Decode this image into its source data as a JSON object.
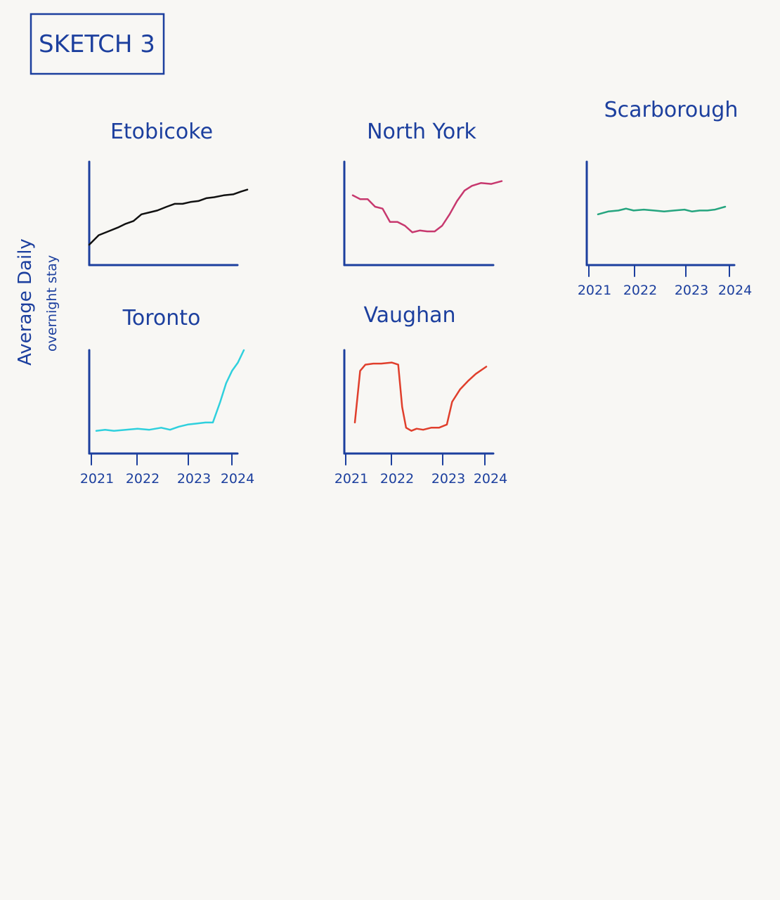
{
  "sketch_title": "SKETCH 3",
  "y_axis_label_line1": "Average Daily",
  "y_axis_label_line2": "overnight stay",
  "colors": {
    "ink": "#1c3f9e",
    "background": "#f8f7f4"
  },
  "chart_data": [
    {
      "type": "line",
      "title": "Etobicoke",
      "x_tick_labels": [],
      "series": [
        {
          "color": "#111111",
          "points": [
            [
              0.0,
              0.2
            ],
            [
              0.06,
              0.3
            ],
            [
              0.12,
              0.34
            ],
            [
              0.18,
              0.38
            ],
            [
              0.23,
              0.42
            ],
            [
              0.28,
              0.45
            ],
            [
              0.33,
              0.52
            ],
            [
              0.38,
              0.54
            ],
            [
              0.43,
              0.56
            ],
            [
              0.49,
              0.6
            ],
            [
              0.54,
              0.63
            ],
            [
              0.59,
              0.63
            ],
            [
              0.64,
              0.65
            ],
            [
              0.69,
              0.66
            ],
            [
              0.74,
              0.69
            ],
            [
              0.79,
              0.7
            ],
            [
              0.85,
              0.72
            ],
            [
              0.91,
              0.73
            ],
            [
              0.96,
              0.76
            ],
            [
              1.0,
              0.78
            ]
          ]
        }
      ]
    },
    {
      "type": "line",
      "title": "North York",
      "x_tick_labels": [],
      "series": [
        {
          "color": "#c7386e",
          "points": [
            [
              0.0,
              0.72
            ],
            [
              0.05,
              0.68
            ],
            [
              0.1,
              0.68
            ],
            [
              0.15,
              0.6
            ],
            [
              0.2,
              0.58
            ],
            [
              0.25,
              0.44
            ],
            [
              0.3,
              0.44
            ],
            [
              0.35,
              0.4
            ],
            [
              0.4,
              0.33
            ],
            [
              0.45,
              0.35
            ],
            [
              0.5,
              0.34
            ],
            [
              0.55,
              0.34
            ],
            [
              0.6,
              0.4
            ],
            [
              0.65,
              0.52
            ],
            [
              0.7,
              0.66
            ],
            [
              0.75,
              0.77
            ],
            [
              0.8,
              0.82
            ],
            [
              0.86,
              0.85
            ],
            [
              0.93,
              0.84
            ],
            [
              1.0,
              0.87
            ]
          ]
        }
      ]
    },
    {
      "type": "line",
      "title": "Scarborough",
      "x_tick_labels": [
        "2021",
        "2022",
        "2023",
        "2024"
      ],
      "series": [
        {
          "color": "#26a57f",
          "points": [
            [
              0.0,
              0.52
            ],
            [
              0.08,
              0.55
            ],
            [
              0.16,
              0.56
            ],
            [
              0.22,
              0.58
            ],
            [
              0.28,
              0.56
            ],
            [
              0.36,
              0.57
            ],
            [
              0.44,
              0.56
            ],
            [
              0.52,
              0.55
            ],
            [
              0.6,
              0.56
            ],
            [
              0.68,
              0.57
            ],
            [
              0.74,
              0.55
            ],
            [
              0.8,
              0.56
            ],
            [
              0.86,
              0.56
            ],
            [
              0.92,
              0.57
            ],
            [
              1.0,
              0.6
            ]
          ]
        }
      ]
    },
    {
      "type": "line",
      "title": "Toronto",
      "x_tick_labels": [
        "2021",
        "2022",
        "2023",
        "2024"
      ],
      "series": [
        {
          "color": "#2fd0dd",
          "points": [
            [
              0.0,
              0.22
            ],
            [
              0.06,
              0.23
            ],
            [
              0.12,
              0.22
            ],
            [
              0.2,
              0.23
            ],
            [
              0.28,
              0.24
            ],
            [
              0.36,
              0.23
            ],
            [
              0.44,
              0.25
            ],
            [
              0.5,
              0.23
            ],
            [
              0.56,
              0.26
            ],
            [
              0.62,
              0.28
            ],
            [
              0.68,
              0.29
            ],
            [
              0.74,
              0.3
            ],
            [
              0.79,
              0.3
            ],
            [
              0.84,
              0.5
            ],
            [
              0.88,
              0.68
            ],
            [
              0.92,
              0.8
            ],
            [
              0.96,
              0.88
            ],
            [
              1.0,
              1.0
            ]
          ]
        }
      ]
    },
    {
      "type": "line",
      "title": "Vaughan",
      "x_tick_labels": [
        "2021",
        "2022",
        "2023",
        "2024"
      ],
      "series": [
        {
          "color": "#e03f2c",
          "points": [
            [
              0.0,
              0.3
            ],
            [
              0.04,
              0.8
            ],
            [
              0.08,
              0.86
            ],
            [
              0.14,
              0.87
            ],
            [
              0.2,
              0.87
            ],
            [
              0.28,
              0.88
            ],
            [
              0.33,
              0.86
            ],
            [
              0.36,
              0.45
            ],
            [
              0.39,
              0.25
            ],
            [
              0.43,
              0.22
            ],
            [
              0.47,
              0.24
            ],
            [
              0.52,
              0.23
            ],
            [
              0.58,
              0.25
            ],
            [
              0.64,
              0.25
            ],
            [
              0.7,
              0.28
            ],
            [
              0.74,
              0.5
            ],
            [
              0.8,
              0.62
            ],
            [
              0.86,
              0.7
            ],
            [
              0.92,
              0.77
            ],
            [
              1.0,
              0.84
            ]
          ]
        }
      ]
    }
  ]
}
